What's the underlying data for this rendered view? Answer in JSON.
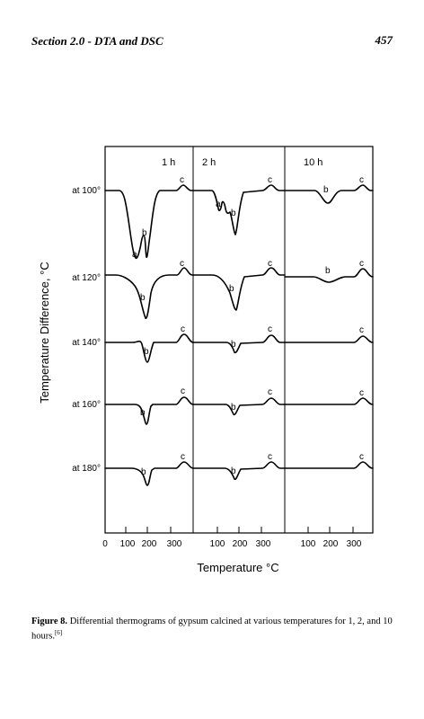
{
  "header": {
    "section": "Section 2.0 - DTA and DSC",
    "page_number": "457"
  },
  "figure": {
    "ylabel": "Temperature Difference, °C",
    "xlabel": "Temperature °C",
    "panels": [
      {
        "label": "1 h",
        "ticks": [
          "0",
          "100",
          "200",
          "300"
        ]
      },
      {
        "label": "2 h",
        "ticks": [
          "100",
          "200",
          "300"
        ]
      },
      {
        "label": "10 h",
        "ticks": [
          "100",
          "200",
          "300"
        ]
      }
    ],
    "rows": [
      "at 100°",
      "at 120°",
      "at 140°",
      "at 160°",
      "at 180°"
    ],
    "peak_labels": {
      "a": "a",
      "b": "b",
      "c": "c"
    }
  },
  "caption": {
    "label": "Figure 8.",
    "text": " Differential thermograms of gypsum calcined at various temperatures for 1, 2, and 10 hours.",
    "ref": "[6]"
  }
}
